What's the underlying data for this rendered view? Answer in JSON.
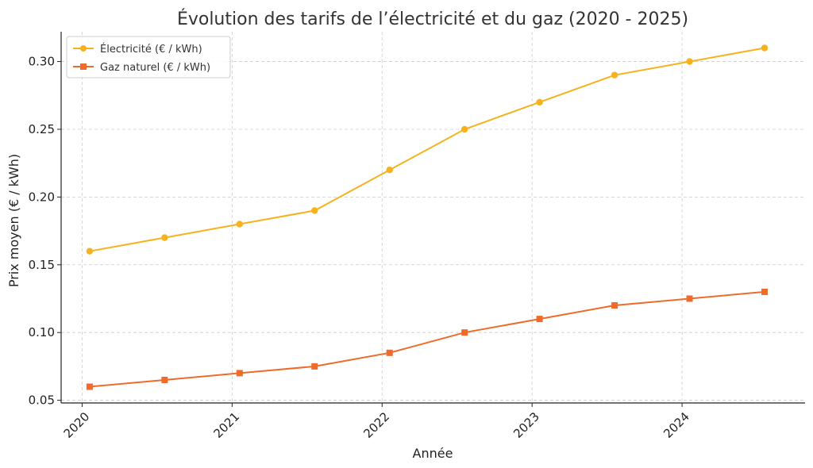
{
  "chart_data": {
    "type": "line",
    "title": "Évolution des tarifs de l’électricité et du gaz (2020 - 2025)",
    "xlabel": "Année",
    "ylabel": "Prix moyen (€ / kWh)",
    "x": [
      2020.05,
      2020.55,
      2021.05,
      2021.55,
      2022.05,
      2022.55,
      2023.05,
      2023.55,
      2024.05,
      2024.55
    ],
    "xlim": [
      2019.86,
      2024.82
    ],
    "ylim": [
      0.048,
      0.322
    ],
    "x_ticks": [
      2020,
      2021,
      2022,
      2023,
      2024
    ],
    "x_tick_labels": [
      "2020",
      "2021",
      "2022",
      "2023",
      "2024"
    ],
    "y_ticks": [
      0.05,
      0.1,
      0.15,
      0.2,
      0.25,
      0.3
    ],
    "y_tick_labels": [
      "0.05",
      "0.10",
      "0.15",
      "0.20",
      "0.25",
      "0.30"
    ],
    "grid": true,
    "legend_position": "top-left",
    "series": [
      {
        "name": "Électricité (€ / kWh)",
        "color": "#F5B21D",
        "marker": "circle",
        "values": [
          0.16,
          0.17,
          0.18,
          0.19,
          0.22,
          0.25,
          0.27,
          0.29,
          0.3,
          0.31
        ]
      },
      {
        "name": "Gaz naturel (€ / kWh)",
        "color": "#EE6B2A",
        "marker": "square",
        "values": [
          0.06,
          0.065,
          0.07,
          0.075,
          0.085,
          0.1,
          0.11,
          0.12,
          0.125,
          0.13
        ]
      }
    ]
  }
}
